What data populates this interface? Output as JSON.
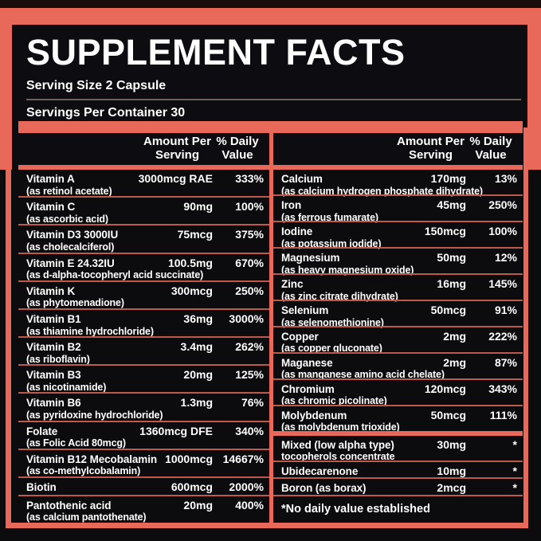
{
  "title": "SUPPLEMENT FACTS",
  "serving_size": "Serving Size 2 Capsule",
  "servings_per_container": "Servings Per Container 30",
  "table_header": {
    "amount_line1": "Amount Per",
    "amount_line2": "Serving",
    "dv_line1": "% Daily",
    "dv_line2": "Value"
  },
  "colors": {
    "accent_coral": "#E8695A",
    "row_separator": "#BD5A4C",
    "serving_divider_gray": "#6F605D",
    "panel_black": "#0D0D11",
    "background_black": "#0C0C0E",
    "text_white": "#FFFFFF"
  },
  "columns": {
    "left": {
      "rows": [
        {
          "name": "Vitamin A",
          "sub": "(as retinol acetate)",
          "amount": "3000mcg RAE",
          "dv": "333%"
        },
        {
          "name": "Vitamin C",
          "sub": "(as ascorbic acid)",
          "amount": "90mg",
          "dv": "100%"
        },
        {
          "name": "Vitamin D3 3000IU",
          "sub": "(as cholecalciferol)",
          "amount": "75mcg",
          "dv": "375%"
        },
        {
          "name": "Vitamin E 24.32IU",
          "sub": "(as d-alpha-tocopheryl acid succinate)",
          "amount": "100.5mg",
          "dv": "670%"
        },
        {
          "name": "Vitamin K",
          "sub": "(as phytomenadione)",
          "amount": "300mcg",
          "dv": "250%"
        },
        {
          "name": "Vitamin B1",
          "sub": "(as thiamine hydrochloride)",
          "amount": "36mg",
          "dv": "3000%"
        },
        {
          "name": "Vitamin B2",
          "sub": "(as riboflavin)",
          "amount": "3.4mg",
          "dv": "262%"
        },
        {
          "name": "Vitamin B3",
          "sub": "(as nicotinamide)",
          "amount": "20mg",
          "dv": "125%"
        },
        {
          "name": "Vitamin B6",
          "sub": "(as pyridoxine hydrochloride)",
          "amount": "1.3mg",
          "dv": "76%"
        },
        {
          "name": "Folate",
          "sub": "(as Folic Acid 80mcg)",
          "amount": "1360mcg DFE",
          "dv": "340%"
        },
        {
          "name": "Vitamin B12 Mecobalamin",
          "sub": "(as co-methylcobalamin)",
          "amount": "1000mcg",
          "dv": "14667%"
        },
        {
          "name": "Biotin",
          "sub": "",
          "amount": "600mcg",
          "dv": "2000%"
        },
        {
          "name": "Pantothenic acid",
          "sub": "(as calcium pantothenate)",
          "amount": "20mg",
          "dv": "400%"
        }
      ]
    },
    "right": {
      "rows": [
        {
          "name": "Calcium",
          "sub": "(as calcium hydrogen phosphate dihydrate)",
          "amount": "170mg",
          "dv": "13%"
        },
        {
          "name": "Iron",
          "sub": "(as ferrous fumarate)",
          "amount": "45mg",
          "dv": "250%"
        },
        {
          "name": "Iodine",
          "sub": "(as potassium iodide)",
          "amount": "150mcg",
          "dv": "100%"
        },
        {
          "name": "Magnesium",
          "sub": "(as heavy magnesium oxide)",
          "amount": "50mg",
          "dv": "12%"
        },
        {
          "name": "Zinc",
          "sub": "(as zinc citrate dihydrate)",
          "amount": "16mg",
          "dv": "145%"
        },
        {
          "name": "Selenium",
          "sub": "(as selenomethionine)",
          "amount": "50mcg",
          "dv": "91%"
        },
        {
          "name": "Copper",
          "sub": "(as copper gluconate)",
          "amount": "2mg",
          "dv": "222%"
        },
        {
          "name": "Maganese",
          "sub": "(as manganese amino acid chelate)",
          "amount": "2mg",
          "dv": "87%"
        },
        {
          "name": "Chromium",
          "sub": "(as chromic picolinate)",
          "amount": "120mcg",
          "dv": "343%"
        },
        {
          "name": "Molybdenum",
          "sub": "(as molybdenum trioxide)",
          "amount": "50mcg",
          "dv": "111%"
        },
        {
          "name": "Mixed (low alpha type)",
          "sub": "tocopherols concentrate",
          "amount": "30mg",
          "dv": "*",
          "section_break_before": true
        },
        {
          "name": "Ubidecarenone",
          "sub": "",
          "amount": "10mg",
          "dv": "*"
        },
        {
          "name": "Boron (as borax)",
          "sub": "",
          "amount": "2mcg",
          "dv": "*"
        }
      ],
      "footnote": "*No daily value established"
    }
  }
}
